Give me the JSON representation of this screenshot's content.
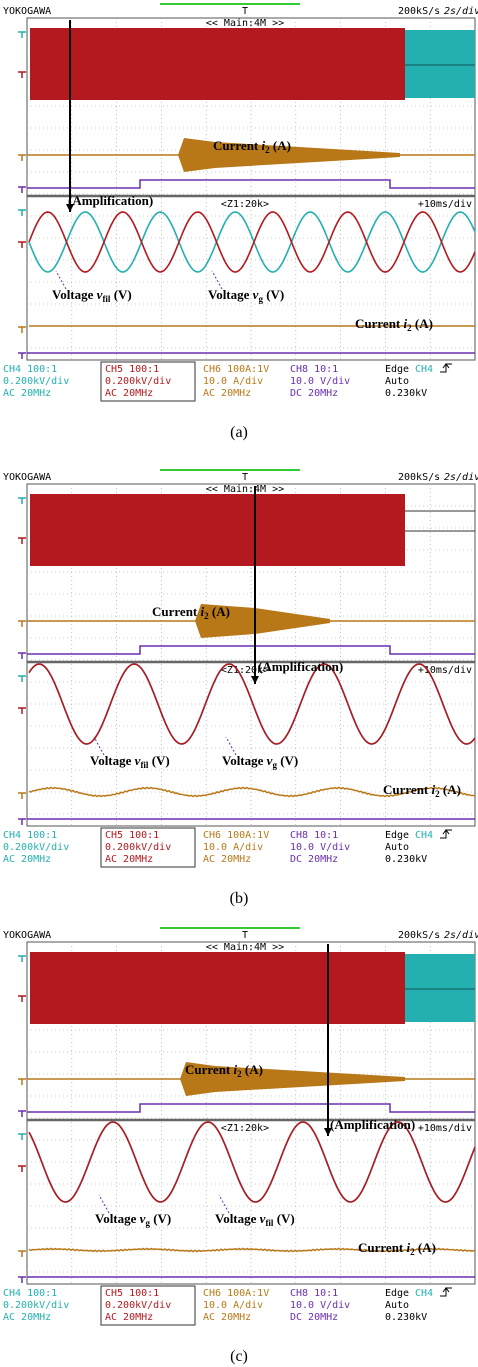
{
  "panels": [
    {
      "caption": "(a)",
      "brand": "YOKOGAWA",
      "trigger_mark": "T",
      "sample_rate": "200kS/s",
      "timebase": "2s/div",
      "main_label": "<< Main:4M >>",
      "zoom_label": "<Z1:20k>",
      "zoom_timebase": "+10ms/div",
      "annotations": [
        {
          "text": "(Amplification)"
        },
        {
          "text": "Current ",
          "var": "i",
          "sub": "2",
          "unit": " (A)"
        },
        {
          "text": "Voltage ",
          "var": "v",
          "sub": "fil",
          "unit": " (V)"
        },
        {
          "text": "Voltage ",
          "var": "v",
          "sub": "g",
          "unit": " (V)"
        },
        {
          "text": "Current ",
          "var": "i",
          "sub": "2",
          "unit": " (A)"
        }
      ],
      "channels": [
        {
          "lines": [
            "CH4 100:1",
            "0.200kV/div",
            "AC   20MHz"
          ]
        },
        {
          "lines": [
            "CH5 100:1",
            "0.200kV/div",
            "AC   20MHz"
          ]
        },
        {
          "lines": [
            "CH6 100A:1V",
            "10.0 A/div",
            "AC   20MHz"
          ]
        },
        {
          "lines": [
            "CH8 10:1",
            "10.0 V/div",
            "DC   20MHz"
          ]
        }
      ],
      "trigger": {
        "mode": "Edge",
        "source": "CH4",
        "level_mode": "Auto",
        "level": "0.230kV"
      }
    },
    {
      "caption": "(b)",
      "brand": "YOKOGAWA",
      "trigger_mark": "T",
      "sample_rate": "200kS/s",
      "timebase": "2s/div",
      "main_label": "<< Main:4M >>",
      "zoom_label": "<Z1:20k>",
      "zoom_timebase": "+10ms/div",
      "annotations": [
        {
          "text": "(Amplification)"
        },
        {
          "text": "Current ",
          "var": "i",
          "sub": "2",
          "unit": " (A)"
        },
        {
          "text": "Voltage ",
          "var": "v",
          "sub": "fil",
          "unit": " (V)"
        },
        {
          "text": "Voltage ",
          "var": "v",
          "sub": "g",
          "unit": " (V)"
        },
        {
          "text": "Current ",
          "var": "i",
          "sub": "2",
          "unit": " (A)"
        }
      ],
      "channels": [
        {
          "lines": [
            "CH4 100:1",
            "0.200kV/div",
            "AC   20MHz"
          ]
        },
        {
          "lines": [
            "CH5 100:1",
            "0.200kV/div",
            "AC   20MHz"
          ]
        },
        {
          "lines": [
            "CH6 100A:1V",
            "10.0 A/div",
            "AC   20MHz"
          ]
        },
        {
          "lines": [
            "CH8 10:1",
            "10.0 V/div",
            "DC   20MHz"
          ]
        }
      ],
      "trigger": {
        "mode": "Edge",
        "source": "CH4",
        "level_mode": "Auto",
        "level": "0.230kV"
      }
    },
    {
      "caption": "(c)",
      "brand": "YOKOGAWA",
      "trigger_mark": "T",
      "sample_rate": "200kS/s",
      "timebase": "2s/div",
      "main_label": "<< Main:4M >>",
      "zoom_label": "<Z1:20k>",
      "zoom_timebase": "+10ms/div",
      "annotations": [
        {
          "text": "(Amplification)"
        },
        {
          "text": "Current ",
          "var": "i",
          "sub": "2",
          "unit": " (A)"
        },
        {
          "text": "Voltage ",
          "var": "v",
          "sub": "g",
          "unit": " (V)"
        },
        {
          "text": "Voltage ",
          "var": "v",
          "sub": "fil",
          "unit": " (V)"
        },
        {
          "text": "Current ",
          "var": "i",
          "sub": "2",
          "unit": " (A)"
        }
      ],
      "channels": [
        {
          "lines": [
            "CH4 100:1",
            "0.200kV/div",
            "AC   20MHz"
          ]
        },
        {
          "lines": [
            "CH5 100:1",
            "0.200kV/div",
            "AC   20MHz"
          ]
        },
        {
          "lines": [
            "CH6 100A:1V",
            "10.0 A/div",
            "AC   20MHz"
          ]
        },
        {
          "lines": [
            "CH8 10:1",
            "10.0 V/div",
            "DC   20MHz"
          ]
        }
      ],
      "trigger": {
        "mode": "Edge",
        "source": "CH4",
        "level_mode": "Auto",
        "level": "0.230kV"
      }
    }
  ]
}
